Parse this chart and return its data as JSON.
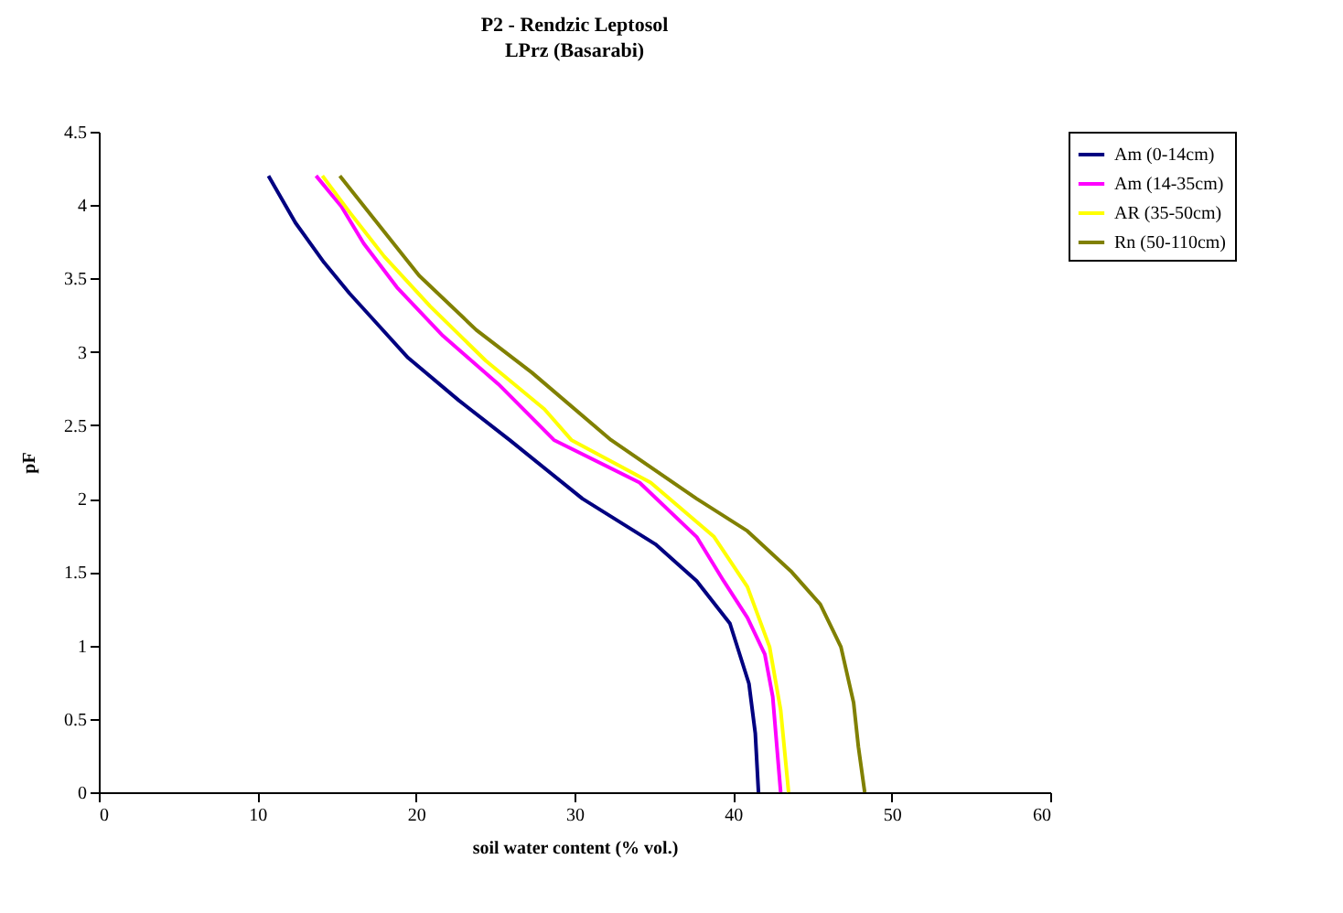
{
  "chart_data": {
    "type": "line",
    "title": "P2 - Rendzic Leptosol",
    "subtitle": "LPrz (Basarabi)",
    "xlabel": "soil water content (% vol.)",
    "ylabel": "pF",
    "xlim": [
      0,
      60
    ],
    "xticks": [
      0,
      10,
      20,
      30,
      40,
      50,
      60
    ],
    "ylim": [
      0,
      4.5
    ],
    "yticks": [
      0,
      0.5,
      1,
      1.5,
      2,
      2.5,
      3,
      3.5,
      4,
      4.5
    ],
    "grid": false,
    "legend": "right",
    "marker": "none",
    "line_style": "solid",
    "series": [
      {
        "name": "Am (0-14cm)",
        "color": "#000080",
        "x": [
          10.7,
          12.4,
          14.2,
          15.8,
          17.4,
          19.5,
          22.7,
          25.9,
          30.5,
          35.1,
          37.7,
          39.8,
          41.0,
          41.4,
          41.6
        ],
        "values": [
          4.2,
          3.88,
          3.61,
          3.4,
          3.21,
          2.96,
          2.67,
          2.4,
          2.0,
          1.69,
          1.44,
          1.15,
          0.74,
          0.4,
          0
        ]
      },
      {
        "name": "Am (14-35cm)",
        "color": "#ff00ff",
        "x": [
          13.7,
          15.3,
          16.7,
          18.8,
          21.7,
          25.2,
          28.7,
          34.1,
          37.7,
          39.4,
          40.9,
          42.0,
          42.5,
          43.0
        ],
        "values": [
          4.2,
          3.99,
          3.74,
          3.44,
          3.11,
          2.78,
          2.4,
          2.11,
          1.74,
          1.44,
          1.19,
          0.94,
          0.65,
          0
        ]
      },
      {
        "name": "AR (35-50cm)",
        "color": "#ffff00",
        "x": [
          14.1,
          15.9,
          18.0,
          20.9,
          24.4,
          28.1,
          29.8,
          34.8,
          38.8,
          40.9,
          42.3,
          43.0,
          43.5
        ],
        "values": [
          4.2,
          3.94,
          3.65,
          3.31,
          2.94,
          2.61,
          2.4,
          2.11,
          1.74,
          1.4,
          0.99,
          0.56,
          0
        ]
      },
      {
        "name": "Rn (50-110cm)",
        "color": "#808000",
        "x": [
          15.2,
          17.4,
          20.2,
          23.8,
          27.3,
          32.3,
          37.7,
          40.9,
          43.7,
          45.5,
          46.8,
          47.6,
          47.9,
          48.3
        ],
        "values": [
          4.2,
          3.9,
          3.52,
          3.15,
          2.86,
          2.4,
          2.0,
          1.78,
          1.5,
          1.28,
          0.99,
          0.61,
          0.31,
          0
        ]
      }
    ]
  }
}
